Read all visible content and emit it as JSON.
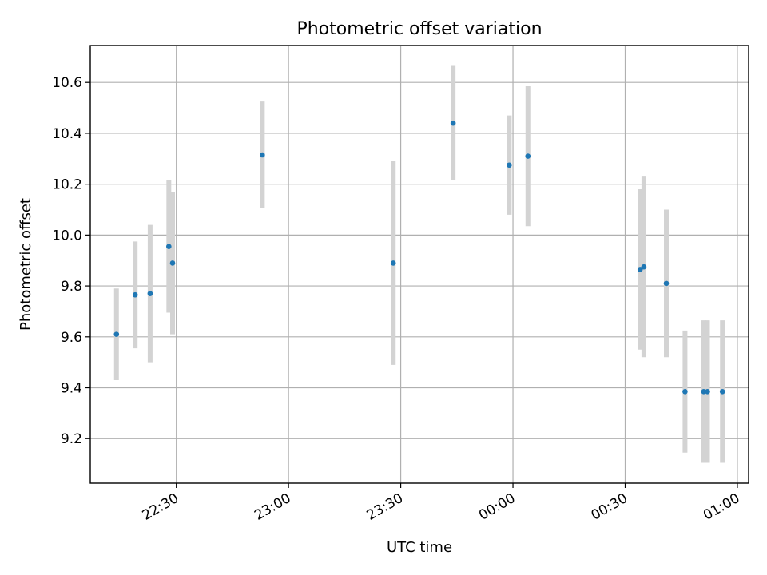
{
  "chart_data": {
    "type": "scatter",
    "title": "Photometric offset variation",
    "xlabel": "UTC time",
    "ylabel": "Photometric offset",
    "x_axis_type": "time",
    "x_range": [
      "22:07",
      "01:03"
    ],
    "ylim": [
      9.025,
      10.745
    ],
    "x_ticks": [
      "22:30",
      "23:00",
      "23:30",
      "00:00",
      "00:30",
      "01:00"
    ],
    "y_ticks": [
      9.2,
      9.4,
      9.6,
      9.8,
      10.0,
      10.2,
      10.4,
      10.6
    ],
    "grid": true,
    "marker_color": "#1f77b4",
    "errorbar_color": "#d3d3d3",
    "points": [
      {
        "x": "22:14",
        "y": 9.61,
        "err": 0.18
      },
      {
        "x": "22:19",
        "y": 9.765,
        "err": 0.21
      },
      {
        "x": "22:23",
        "y": 9.77,
        "err": 0.27
      },
      {
        "x": "22:28",
        "y": 9.955,
        "err": 0.26
      },
      {
        "x": "22:29",
        "y": 9.89,
        "err": 0.28
      },
      {
        "x": "22:53",
        "y": 10.315,
        "err": 0.21
      },
      {
        "x": "23:28",
        "y": 9.89,
        "err": 0.4
      },
      {
        "x": "23:44",
        "y": 10.44,
        "err": 0.225
      },
      {
        "x": "23:59",
        "y": 10.275,
        "err": 0.195
      },
      {
        "x": "00:04",
        "y": 10.31,
        "err": 0.275
      },
      {
        "x": "00:34",
        "y": 9.865,
        "err": 0.315
      },
      {
        "x": "00:35",
        "y": 9.875,
        "err": 0.355
      },
      {
        "x": "00:41",
        "y": 9.81,
        "err": 0.29
      },
      {
        "x": "00:46",
        "y": 9.385,
        "err": 0.24
      },
      {
        "x": "00:51",
        "y": 9.385,
        "err": 0.28
      },
      {
        "x": "00:52",
        "y": 9.385,
        "err": 0.28
      },
      {
        "x": "00:56",
        "y": 9.385,
        "err": 0.28
      }
    ]
  }
}
